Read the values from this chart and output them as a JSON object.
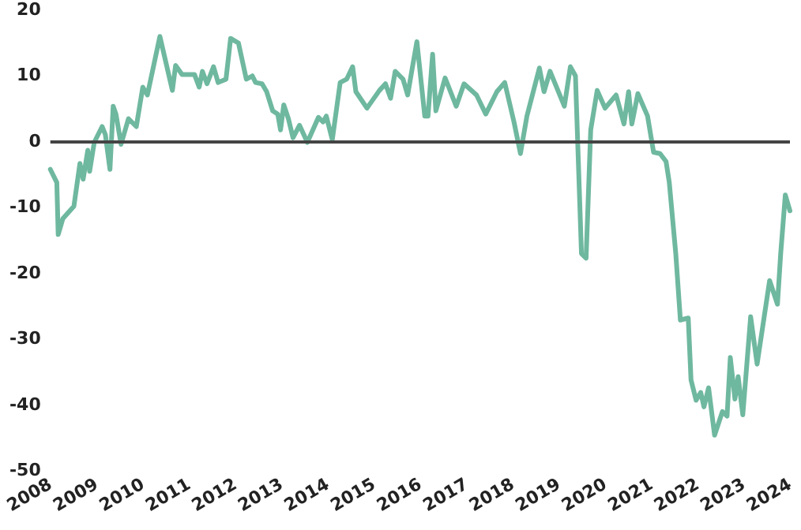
{
  "chart_data": {
    "type": "line",
    "x": [
      2008,
      2008.14,
      2008.17,
      2008.27,
      2008.51,
      2008.64,
      2008.71,
      2008.81,
      2008.85,
      2008.95,
      2009.12,
      2009.19,
      2009.29,
      2009.36,
      2009.42,
      2009.53,
      2009.69,
      2009.86,
      2010,
      2010.1,
      2010.37,
      2010.64,
      2010.71,
      2010.85,
      2011.12,
      2011.22,
      2011.29,
      2011.39,
      2011.53,
      2011.63,
      2011.8,
      2011.9,
      2012.07,
      2012.24,
      2012.37,
      2012.44,
      2012.58,
      2012.68,
      2012.81,
      2012.92,
      2012.98,
      2013.05,
      2013.15,
      2013.25,
      2013.39,
      2013.56,
      2013.8,
      2013.9,
      2013.97,
      2014.1,
      2014.27,
      2014.41,
      2014.54,
      2014.61,
      2014.85,
      2015.12,
      2015.25,
      2015.36,
      2015.46,
      2015.63,
      2015.73,
      2015.83,
      2015.93,
      2016.1,
      2016.17,
      2016.27,
      2016.34,
      2016.54,
      2016.78,
      2016.95,
      2017.22,
      2017.42,
      2017.66,
      2017.83,
      2018.03,
      2018.17,
      2018.31,
      2018.58,
      2018.68,
      2018.81,
      2019.12,
      2019.25,
      2019.36,
      2019.49,
      2019.59,
      2019.69,
      2019.83,
      2020,
      2020.24,
      2020.41,
      2020.51,
      2020.58,
      2020.71,
      2020.92,
      2021.05,
      2021.19,
      2021.32,
      2021.39,
      2021.53,
      2021.63,
      2021.8,
      2021.86,
      2021.97,
      2022.07,
      2022.14,
      2022.24,
      2022.37,
      2022.54,
      2022.64,
      2022.71,
      2022.81,
      2022.88,
      2022.98,
      2023.15,
      2023.29,
      2023.56,
      2023.73,
      2023.8,
      2023.9,
      2024
    ],
    "values": [
      -4.3,
      -6.3,
      -14.2,
      -11.8,
      -9.9,
      -3.4,
      -5.8,
      -1.4,
      -4.6,
      -0.2,
      2.2,
      1,
      -4.3,
      5.3,
      4.1,
      -0.5,
      3.4,
      2.2,
      8.2,
      7,
      15.9,
      7.7,
      11.5,
      10.1,
      10.1,
      8.2,
      10.6,
      8.7,
      11.3,
      8.9,
      9.4,
      15.6,
      14.9,
      9.4,
      9.9,
      8.9,
      8.7,
      7.5,
      4.6,
      4.1,
      1.7,
      5.5,
      3.4,
      0.5,
      2.4,
      -0.2,
      3.6,
      2.9,
      3.8,
      0.2,
      8.9,
      9.4,
      11.3,
      7.5,
      5,
      7.7,
      8.7,
      6.5,
      10.6,
      9.4,
      7,
      11.1,
      15.1,
      3.8,
      3.8,
      13.2,
      4.6,
      9.6,
      5.3,
      8.7,
      7,
      4.1,
      7.5,
      8.9,
      2.9,
      -1.9,
      3.8,
      11.1,
      7.5,
      10.6,
      5.3,
      11.3,
      9.9,
      -17.1,
      -17.8,
      1.7,
      7.7,
      5,
      7,
      2.6,
      7.5,
      2.6,
      7.2,
      3.8,
      -1.7,
      -1.9,
      -3.1,
      -6.3,
      -17.1,
      -27.2,
      -26.9,
      -36.3,
      -39.4,
      -38.2,
      -40.4,
      -37.5,
      -44.7,
      -41.1,
      -41.8,
      -32.9,
      -39.2,
      -35.8,
      -41.6,
      -26.7,
      -33.9,
      -21.2,
      -24.8,
      -17.1,
      -8.2,
      -10.6
    ],
    "color": "#6fb8a0",
    "xlim": [
      2008,
      2024
    ],
    "xticks": [
      2008,
      2009,
      2010,
      2011,
      2012,
      2013,
      2014,
      2015,
      2016,
      2017,
      2018,
      2019,
      2020,
      2021,
      2022,
      2023,
      2024
    ],
    "ylim": [
      -50,
      20
    ],
    "yticks": [
      -50,
      -40,
      -30,
      -20,
      -10,
      0,
      10,
      20
    ],
    "grid": false,
    "marker": "none",
    "line_style": "solid",
    "ref_lines": [
      {
        "axis": "y",
        "value": 0,
        "color": "#444444"
      }
    ]
  }
}
